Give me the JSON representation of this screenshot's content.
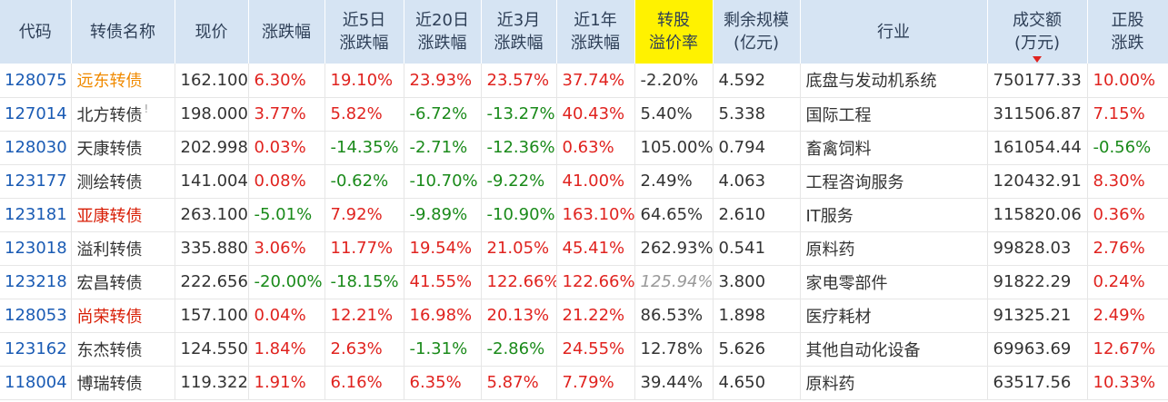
{
  "columns": [
    {
      "key": "code",
      "label": "代码"
    },
    {
      "key": "name",
      "label": "转债名称"
    },
    {
      "key": "price",
      "label": "现价"
    },
    {
      "key": "chg",
      "label": "涨跌幅"
    },
    {
      "key": "chg5d",
      "label": "近5日\n涨跌幅"
    },
    {
      "key": "chg20d",
      "label": "近20日\n涨跌幅"
    },
    {
      "key": "chg3m",
      "label": "近3月\n涨跌幅"
    },
    {
      "key": "chg1y",
      "label": "近1年\n涨跌幅"
    },
    {
      "key": "premium",
      "label": "转股\n溢价率",
      "highlight": "#fff200"
    },
    {
      "key": "remain",
      "label": "剩余规模\n(亿元)"
    },
    {
      "key": "industry",
      "label": "行业"
    },
    {
      "key": "volume",
      "label": "成交额\n(万元)",
      "sorted": "desc"
    },
    {
      "key": "stock_chg",
      "label": "正股\n涨跌"
    }
  ],
  "rows": [
    {
      "code": "128075",
      "name": "远东转债",
      "name_style": "orange",
      "price": "162.100",
      "chg": "6.30%",
      "chg5d": "19.10%",
      "chg20d": "23.93%",
      "chg3m": "23.57%",
      "chg1y": "37.74%",
      "premium": "-2.20%",
      "remain": "4.592",
      "industry": "底盘与发动机系统",
      "volume": "750177.33",
      "stock_chg": "10.00%"
    },
    {
      "code": "127014",
      "name": "北方转债",
      "name_mark": "!",
      "price": "198.000",
      "chg": "3.77%",
      "chg5d": "5.82%",
      "chg20d": "-6.72%",
      "chg3m": "-13.27%",
      "chg1y": "40.43%",
      "premium": "5.40%",
      "remain": "5.338",
      "industry": "国际工程",
      "volume": "311506.87",
      "stock_chg": "7.15%"
    },
    {
      "code": "128030",
      "name": "天康转债",
      "price": "202.998",
      "chg": "0.03%",
      "chg5d": "-14.35%",
      "chg20d": "-2.71%",
      "chg3m": "-12.36%",
      "chg1y": "0.63%",
      "premium": "105.00%",
      "remain": "0.794",
      "industry": "畜禽饲料",
      "volume": "161054.44",
      "stock_chg": "-0.56%"
    },
    {
      "code": "123177",
      "name": "测绘转债",
      "price": "141.004",
      "chg": "0.08%",
      "chg5d": "-0.62%",
      "chg20d": "-10.70%",
      "chg3m": "-9.22%",
      "chg1y": "41.00%",
      "premium": "2.49%",
      "remain": "4.063",
      "industry": "工程咨询服务",
      "volume": "120432.91",
      "stock_chg": "8.30%"
    },
    {
      "code": "123181",
      "name": "亚康转债",
      "name_style": "red",
      "price": "263.100",
      "chg": "-5.01%",
      "chg5d": "7.92%",
      "chg20d": "-9.89%",
      "chg3m": "-10.90%",
      "chg1y": "163.10%",
      "premium": "64.65%",
      "remain": "2.610",
      "industry": "IT服务",
      "volume": "115820.06",
      "stock_chg": "0.36%"
    },
    {
      "code": "123018",
      "name": "溢利转债",
      "price": "335.880",
      "chg": "3.06%",
      "chg5d": "11.77%",
      "chg20d": "19.54%",
      "chg3m": "21.05%",
      "chg1y": "45.41%",
      "premium": "262.93%",
      "remain": "0.541",
      "industry": "原料药",
      "volume": "99828.03",
      "stock_chg": "2.76%"
    },
    {
      "code": "123218",
      "name": "宏昌转债",
      "price": "222.656",
      "chg": "-20.00%",
      "chg5d": "-18.15%",
      "chg20d": "41.55%",
      "chg3m": "122.66%",
      "chg1y": "122.66%",
      "premium": "125.94%",
      "premium_style": "gray",
      "remain": "3.800",
      "industry": "家电零部件",
      "volume": "91822.29",
      "stock_chg": "0.24%"
    },
    {
      "code": "128053",
      "name": "尚荣转债",
      "name_style": "red",
      "price": "157.100",
      "chg": "0.04%",
      "chg5d": "12.21%",
      "chg20d": "16.98%",
      "chg3m": "20.13%",
      "chg1y": "21.22%",
      "premium": "86.53%",
      "remain": "1.898",
      "industry": "医疗耗材",
      "volume": "91325.21",
      "stock_chg": "2.49%"
    },
    {
      "code": "123162",
      "name": "东杰转债",
      "price": "124.550",
      "chg": "1.84%",
      "chg5d": "2.63%",
      "chg20d": "-1.31%",
      "chg3m": "-2.86%",
      "chg1y": "24.55%",
      "premium": "12.78%",
      "remain": "5.626",
      "industry": "其他自动化设备",
      "volume": "69963.69",
      "stock_chg": "12.67%"
    },
    {
      "code": "118004",
      "name": "博瑞转债",
      "price": "119.322",
      "chg": "1.91%",
      "chg5d": "6.16%",
      "chg20d": "6.35%",
      "chg3m": "5.87%",
      "chg1y": "7.79%",
      "premium": "39.44%",
      "remain": "4.650",
      "industry": "原料药",
      "volume": "63517.56",
      "stock_chg": "10.33%"
    }
  ]
}
